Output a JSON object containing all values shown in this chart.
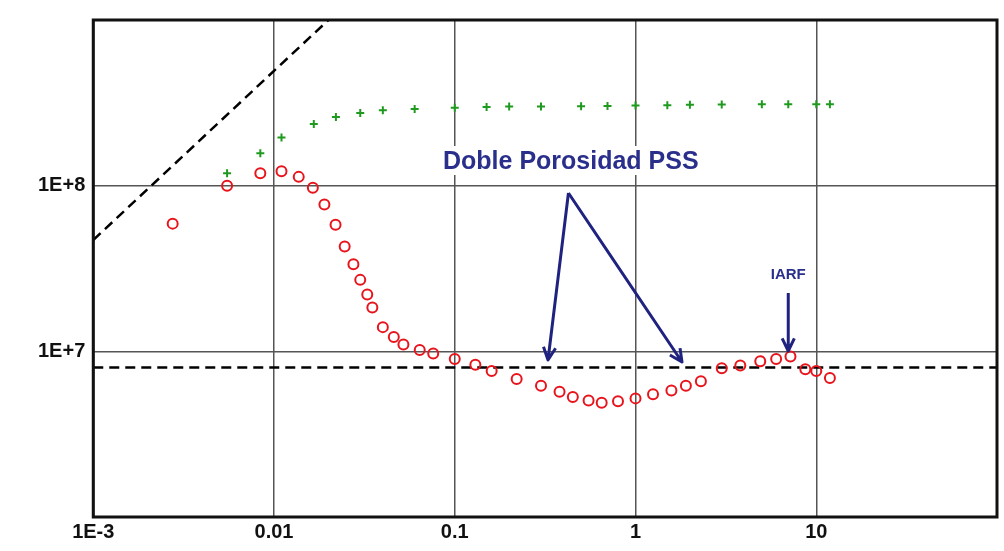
{
  "chart_data": {
    "type": "scatter",
    "log": "xy",
    "grid": true,
    "legend": false,
    "xlim": [
      0.001,
      100
    ],
    "ylim": [
      1000000,
      1000000000
    ],
    "xticks": [
      {
        "value": 0.001,
        "label": "1E-3"
      },
      0.01,
      0.1,
      1,
      10
    ],
    "yticks": [
      {
        "value": 10000000,
        "label": "1E+7"
      },
      {
        "value": 100000000,
        "label": "1E+8"
      }
    ],
    "ref_lines": [
      {
        "axis": "y",
        "value": 8000000,
        "color": "#000000",
        "line_style": "dashed"
      }
    ],
    "annotations": [
      "Doble Porosidad PSS",
      {
        "text": "IARF",
        "x": 7,
        "y": 9500000
      }
    ],
    "series": [
      {
        "type": "line",
        "color": "#000000",
        "line_style": "dashed",
        "marker": "none",
        "x": [
          0.001,
          0.02
        ],
        "values": [
          47000000,
          1000000000
        ]
      },
      {
        "color": "#1f9a1f",
        "marker": "cross",
        "x": [
          0.0055,
          0.0084,
          0.011,
          0.0166,
          0.022,
          0.03,
          0.04,
          0.06,
          0.1,
          0.15,
          0.2,
          0.3,
          0.5,
          0.7,
          1,
          1.5,
          2,
          3,
          5,
          7,
          10,
          11.9
        ],
        "values": [
          119000000,
          157000000,
          195000000,
          236000000,
          260000000,
          275000000,
          285000000,
          290000000,
          295000000,
          298000000,
          300000000,
          300000000,
          302000000,
          303000000,
          305000000,
          306000000,
          308000000,
          309000000,
          310000000,
          310000000,
          310000000,
          310000000
        ]
      },
      {
        "color": "#e8141c",
        "marker": "circle",
        "x": [
          0.00275,
          0.0055,
          0.0084,
          0.011,
          0.0137,
          0.0164,
          0.019,
          0.0219,
          0.0246,
          0.0275,
          0.03,
          0.0328,
          0.035,
          0.04,
          0.046,
          0.052,
          0.064,
          0.076,
          0.1,
          0.13,
          0.16,
          0.22,
          0.3,
          0.38,
          0.45,
          0.55,
          0.65,
          0.8,
          1,
          1.25,
          1.58,
          1.9,
          2.3,
          3,
          3.8,
          4.9,
          6,
          7.2,
          8.7,
          10,
          11.9
        ],
        "values": [
          59000000,
          100000000,
          119000000,
          122000000,
          113000000,
          97000000,
          77000000,
          58000000,
          43000000,
          33600000,
          27000000,
          22000000,
          18400000,
          14000000,
          12200000,
          11000000,
          10200000,
          9700000,
          9000000,
          8300000,
          7600000,
          6800000,
          6200000,
          5700000,
          5300000,
          5050000,
          4900000,
          5000000,
          5200000,
          5500000,
          5800000,
          6200000,
          6600000,
          7900000,
          8200000,
          8700000,
          9000000,
          9300000,
          7800000,
          7600000,
          6900000
        ]
      }
    ]
  }
}
